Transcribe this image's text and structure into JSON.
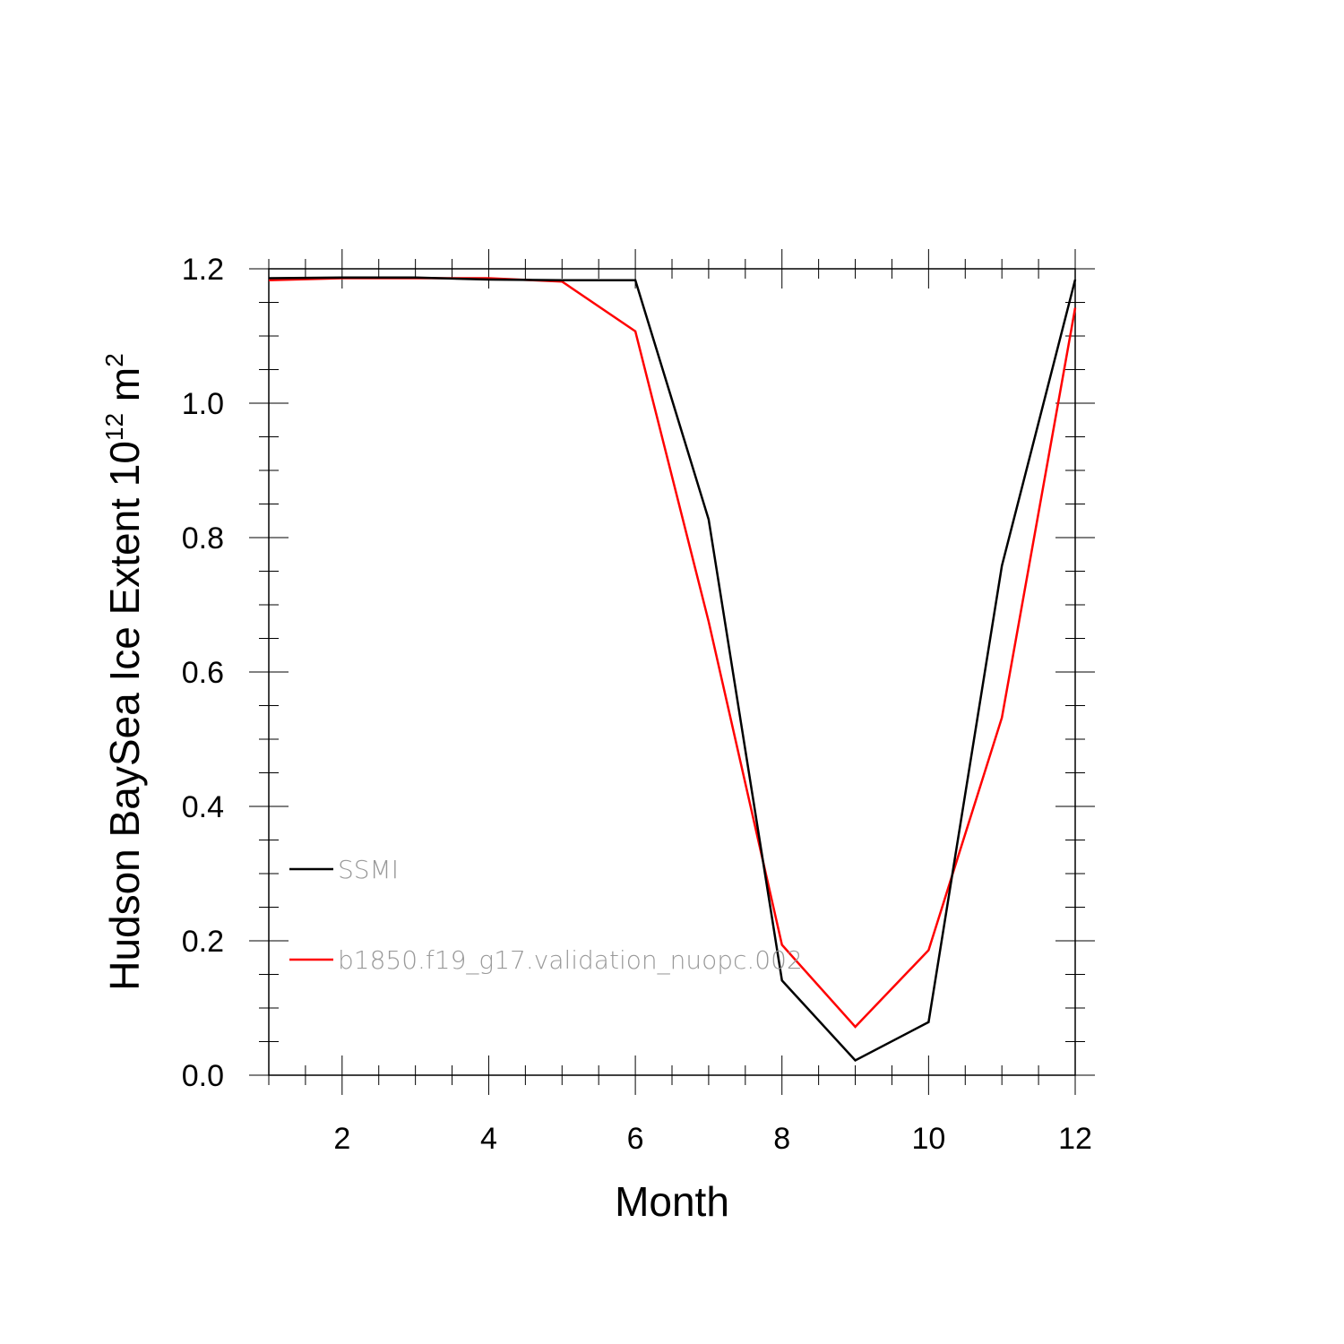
{
  "chart_data": {
    "type": "line",
    "xlabel": "Month",
    "ylabel": "Hudson BaySea Ice Extent 10",
    "ylabel_superscript": "12",
    "ylabel_unit": "m",
    "ylabel_unit_superscript": "2",
    "xlim": [
      1,
      12
    ],
    "ylim": [
      0.0,
      1.2
    ],
    "x_ticks": [
      2,
      4,
      6,
      8,
      10,
      12
    ],
    "x_tick_labels": [
      "2",
      "4",
      "6",
      "8",
      "10",
      "12"
    ],
    "y_ticks": [
      0.0,
      0.2,
      0.4,
      0.6,
      0.8,
      1.0,
      1.2
    ],
    "y_tick_labels": [
      "0.0",
      "0.2",
      "0.4",
      "0.6",
      "0.8",
      "1.0",
      "1.2"
    ],
    "grid": false,
    "legend_position": "lower-left",
    "x": [
      1,
      2,
      3,
      4,
      5,
      6,
      7,
      8,
      9,
      10,
      11,
      12
    ],
    "series": [
      {
        "name": "SSMI",
        "color": "#000000",
        "values": [
          1.186,
          1.187,
          1.187,
          1.184,
          1.183,
          1.183,
          0.827,
          0.141,
          0.022,
          0.079,
          0.758,
          1.184
        ]
      },
      {
        "name": "b1850.f19_g17.validation_nuopc.002",
        "color": "#ff0000",
        "values": [
          1.183,
          1.186,
          1.186,
          1.186,
          1.181,
          1.107,
          0.675,
          0.194,
          0.072,
          0.186,
          0.532,
          1.142
        ]
      }
    ]
  }
}
